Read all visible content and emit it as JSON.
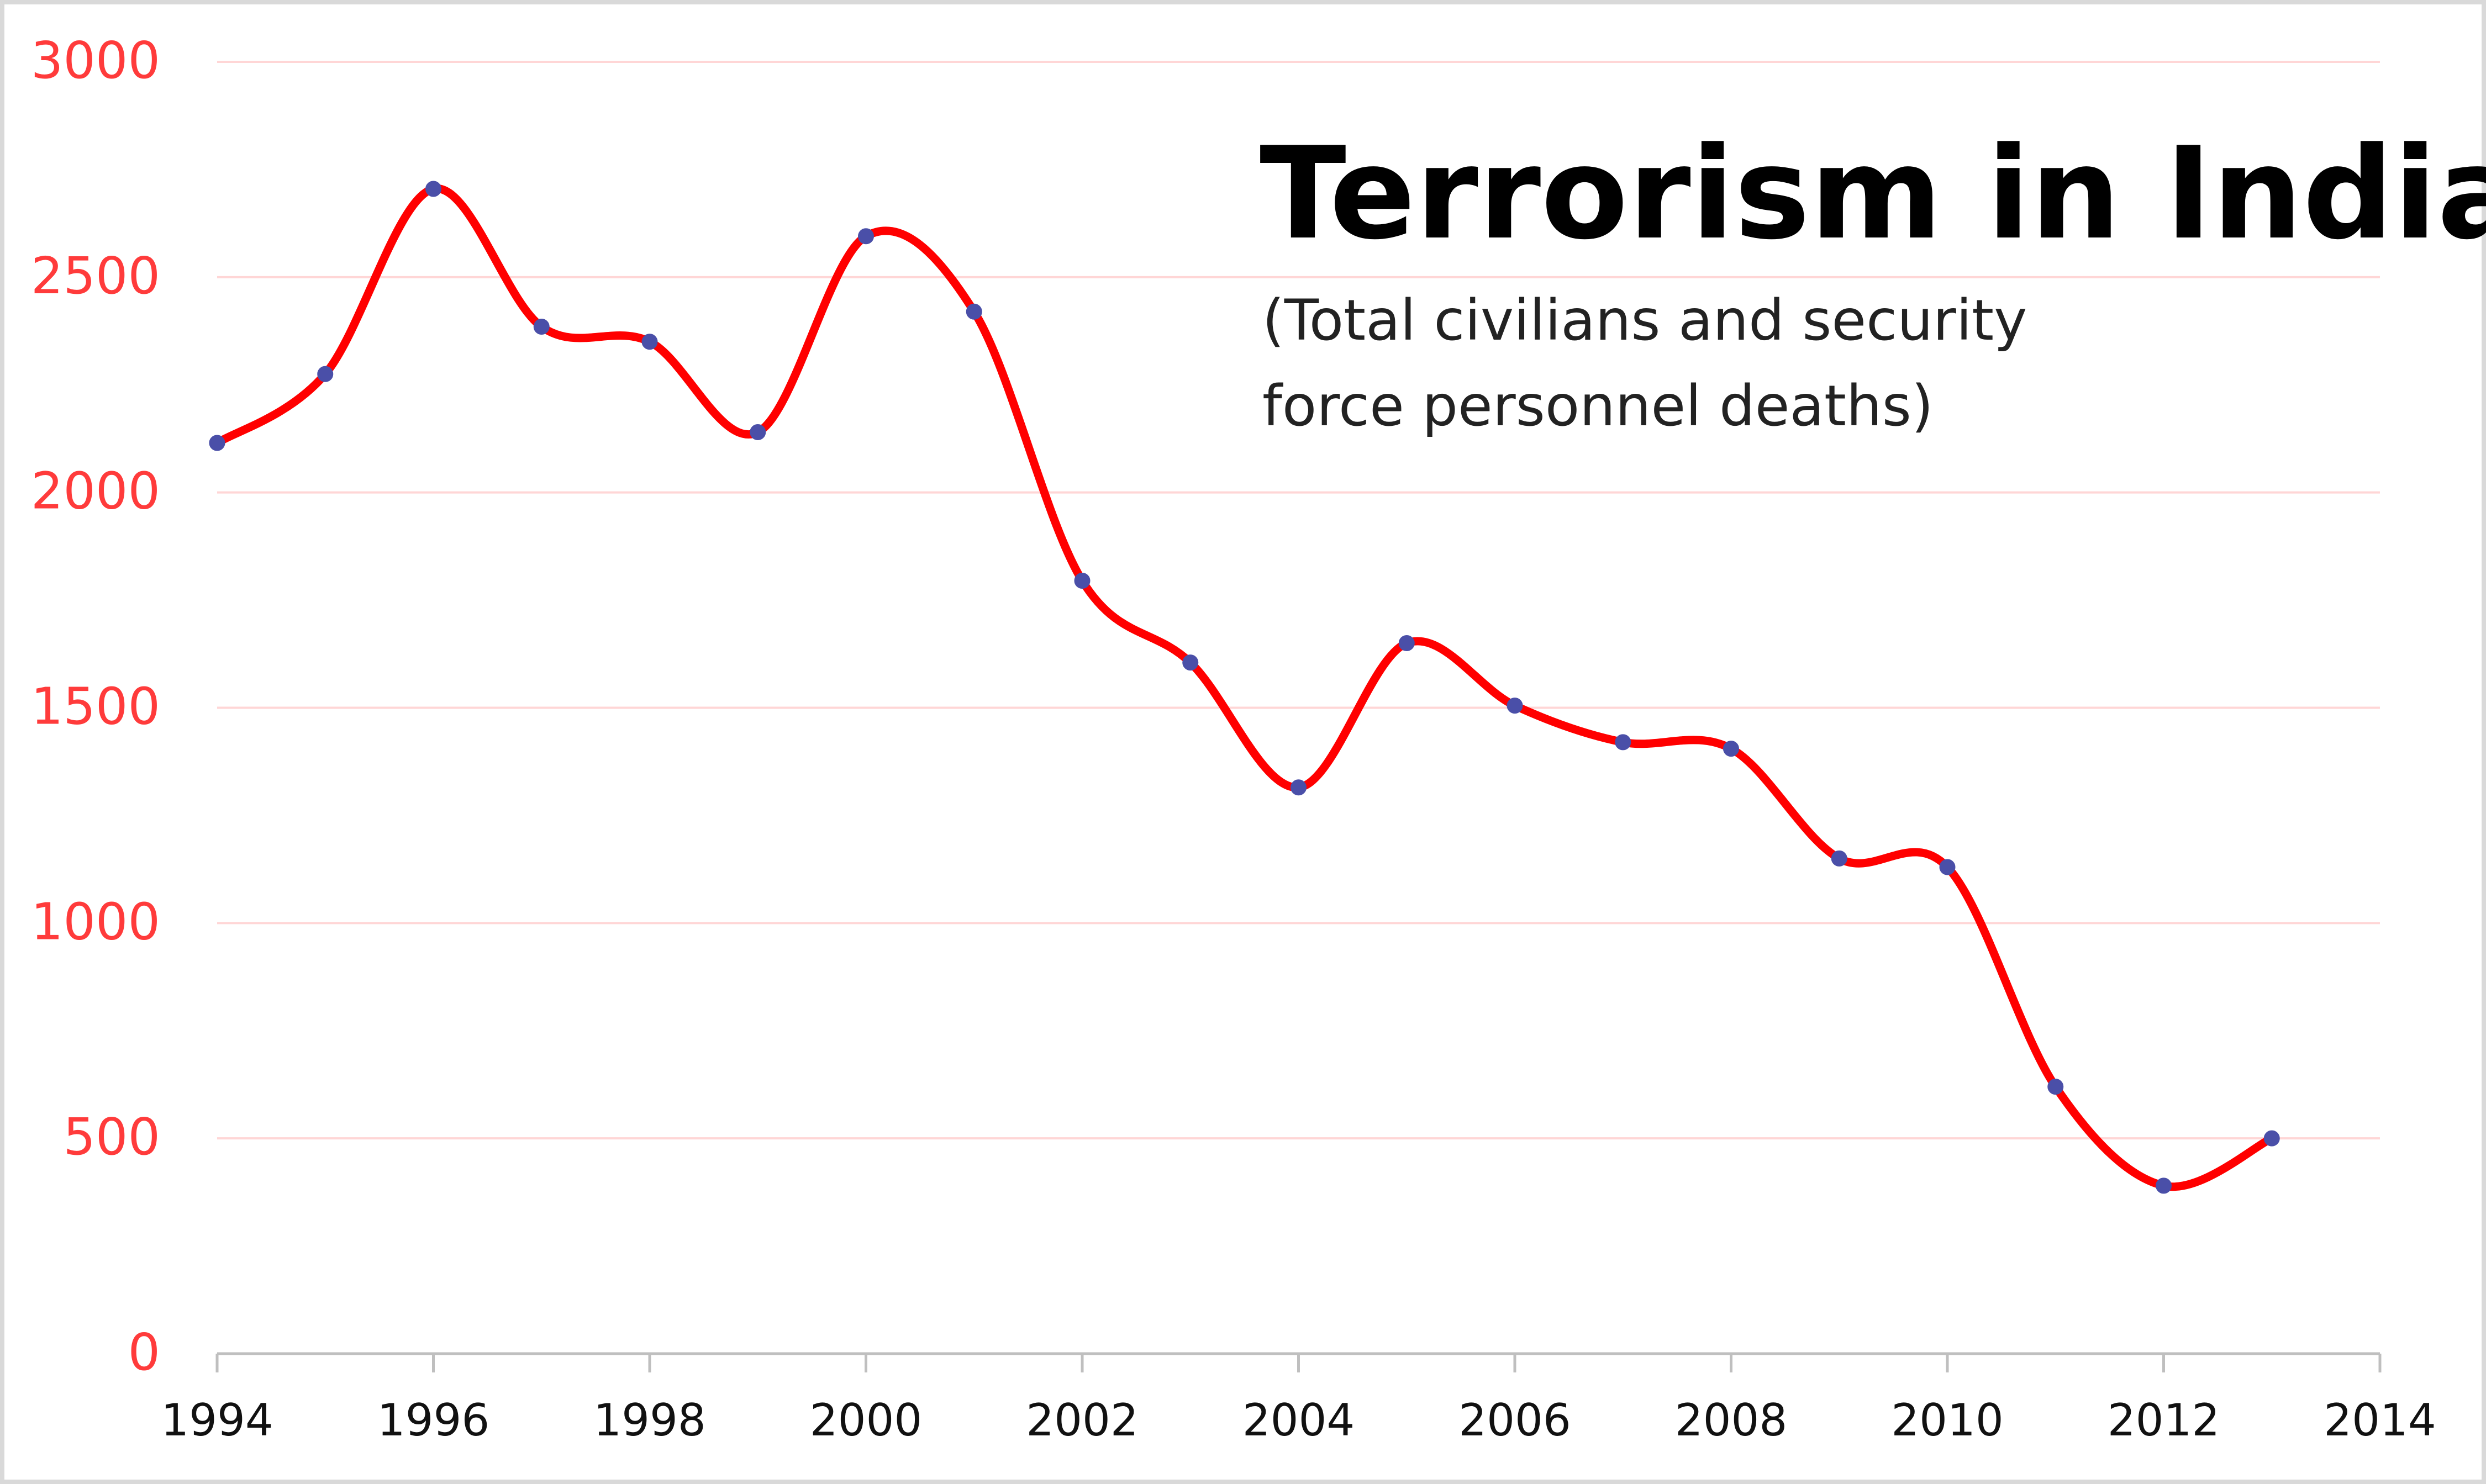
{
  "chart_data": {
    "type": "line",
    "title": "Terrorism in India",
    "subtitle_lines": [
      "(Total civilians and security",
      "force personnel deaths)"
    ],
    "xlabel": "",
    "ylabel": "",
    "x": [
      1994,
      1995,
      1996,
      1997,
      1998,
      1999,
      2000,
      2001,
      2002,
      2003,
      2004,
      2005,
      2006,
      2007,
      2008,
      2009,
      2010,
      2011,
      2012,
      2013
    ],
    "series": [
      {
        "values": [
          2115,
          2275,
          2705,
          2385,
          2350,
          2140,
          2595,
          2420,
          1795,
          1605,
          1315,
          1650,
          1505,
          1420,
          1405,
          1150,
          1130,
          620,
          390,
          500
        ]
      }
    ],
    "xlim": [
      1994,
      2014
    ],
    "ylim": [
      0,
      3000
    ],
    "xticks": [
      "1994",
      "1996",
      "1998",
      "2000",
      "2002",
      "2004",
      "2006",
      "2008",
      "2010",
      "2012",
      "2014"
    ],
    "yticks": [
      "0",
      "500",
      "1000",
      "1500",
      "2000",
      "2500",
      "3000"
    ],
    "grid": true,
    "smooth": true,
    "colors": {
      "line": "#ff0000",
      "marker": "#4a4fa8",
      "grid": "#ffd6d6",
      "ytick": "#ff3b3b",
      "xtick": "#111111",
      "axis": "#bfbfbf"
    }
  }
}
